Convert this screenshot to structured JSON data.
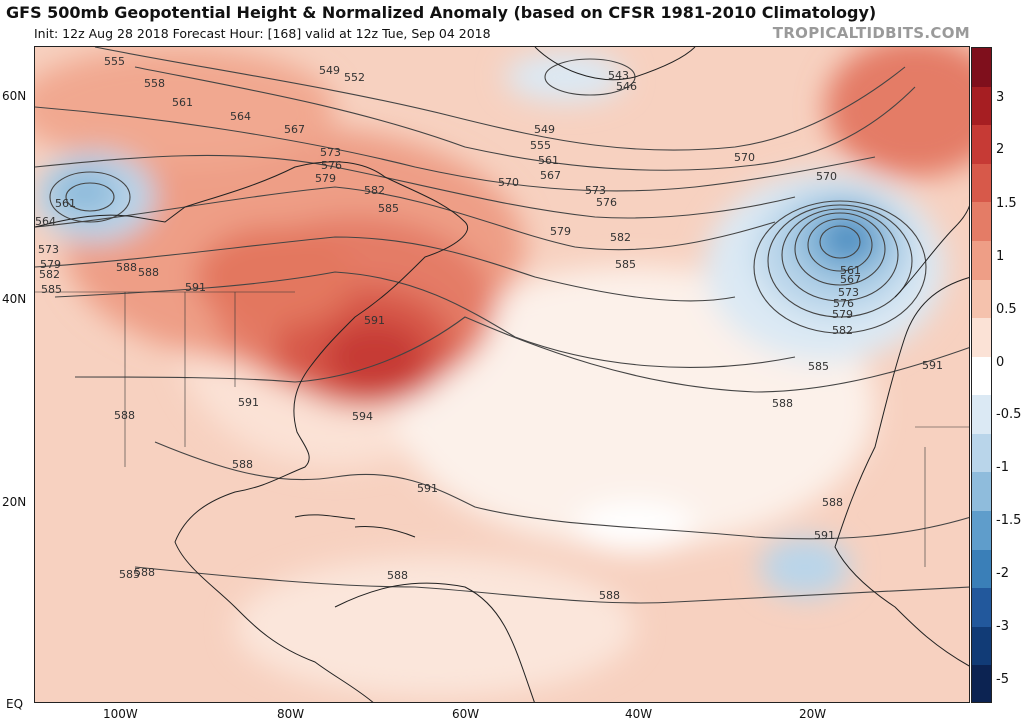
{
  "header": {
    "title": "GFS 500mb Geopotential Height & Normalized Anomaly (based on CFSR 1981-2010 Climatology)",
    "subtitle": "Init: 12z Aug 28 2018   Forecast Hour: [168]   valid at 12z Tue, Sep 04 2018",
    "brand": "TROPICALTIDBITS.COM"
  },
  "axes": {
    "lat_labels": [
      "60N",
      "40N",
      "20N",
      "EQ"
    ],
    "lon_labels": [
      "100W",
      "80W",
      "60W",
      "40W",
      "20W"
    ]
  },
  "colorbar": {
    "labels": [
      "3",
      "2",
      "1.5",
      "1",
      "0.5",
      "0",
      "-0.5",
      "-1",
      "-1.5",
      "-2",
      "-3",
      "-5"
    ],
    "colors": [
      "#7f0f1c",
      "#a61e22",
      "#c63a35",
      "#d7594a",
      "#e47c66",
      "#ee9e86",
      "#f5c2ad",
      "#fbe2d6",
      "#ffffff",
      "#dbe9f4",
      "#b9d5ea",
      "#8fbcdc",
      "#5f9dcb",
      "#3a7fb8",
      "#22589c",
      "#113b76",
      "#0c2352"
    ]
  },
  "contours": {
    "labels": [
      "555",
      "558",
      "561",
      "564",
      "567",
      "570",
      "573",
      "576",
      "579",
      "582",
      "585",
      "588",
      "591",
      "594",
      "549",
      "552",
      "543",
      "546"
    ],
    "label_list": [
      "555",
      "558",
      "561",
      "564",
      "567",
      "573",
      "576",
      "579",
      "582",
      "585",
      "549",
      "552",
      "543",
      "546",
      "549",
      "555",
      "561",
      "567",
      "570",
      "573",
      "576",
      "579",
      "582",
      "585",
      "570",
      "570",
      "561",
      "567",
      "573",
      "576",
      "579",
      "582",
      "585",
      "588",
      "588",
      "591",
      "591",
      "594",
      "561",
      "564",
      "573",
      "579",
      "582",
      "585",
      "588",
      "591",
      "591",
      "588",
      "588",
      "591",
      "585",
      "588",
      "588",
      "591",
      "588",
      "588"
    ]
  }
}
